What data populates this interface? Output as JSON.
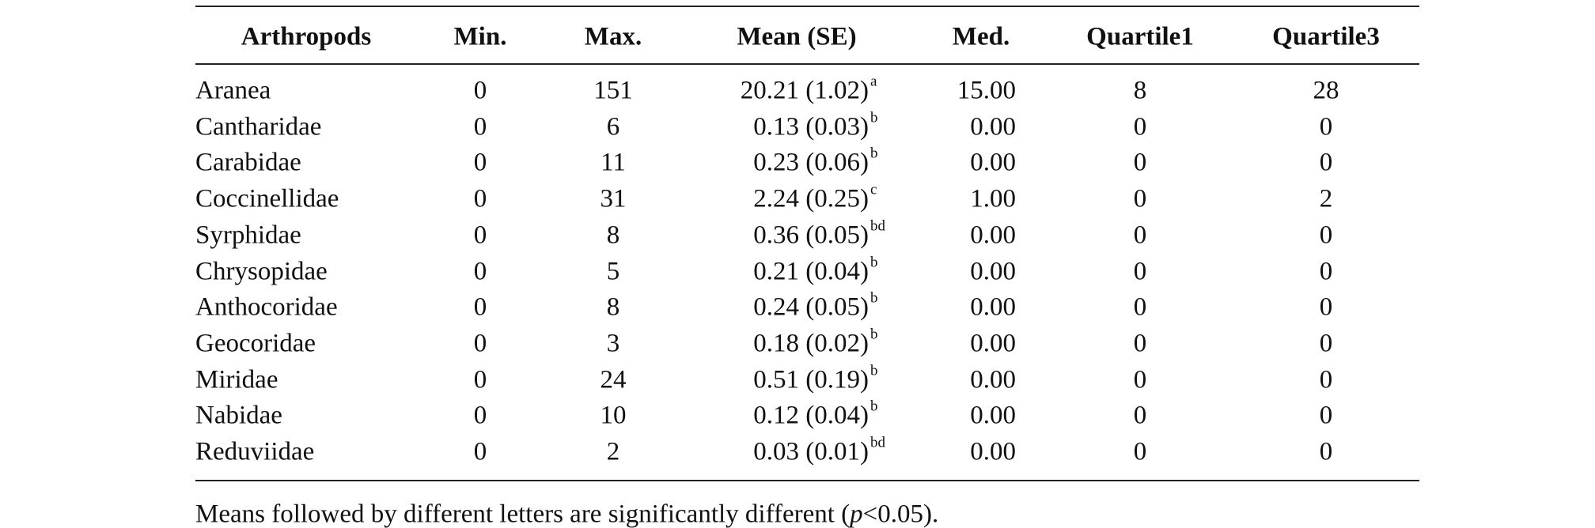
{
  "table": {
    "headers": [
      "Arthropods",
      "Min.",
      "Max.",
      "Mean (SE)",
      "Med.",
      "Quartile1",
      "Quartile3"
    ],
    "rows": [
      [
        "Aranea",
        "0",
        "151",
        "20.21 (1.02)",
        "a",
        "15.00",
        "8",
        "28"
      ],
      [
        "Cantharidae",
        "0",
        "6",
        "0.13 (0.03)",
        "b",
        "0.00",
        "0",
        "0"
      ],
      [
        "Carabidae",
        "0",
        "11",
        "0.23 (0.06)",
        "b",
        "0.00",
        "0",
        "0"
      ],
      [
        "Coccinellidae",
        "0",
        "31",
        "2.24 (0.25)",
        "c",
        "1.00",
        "0",
        "2"
      ],
      [
        "Syrphidae",
        "0",
        "8",
        "0.36 (0.05)",
        "bd",
        "0.00",
        "0",
        "0"
      ],
      [
        "Chrysopidae",
        "0",
        "5",
        "0.21 (0.04)",
        "b",
        "0.00",
        "0",
        "0"
      ],
      [
        "Anthocoridae",
        "0",
        "8",
        "0.24 (0.05)",
        "b",
        "0.00",
        "0",
        "0"
      ],
      [
        "Geocoridae",
        "0",
        "3",
        "0.18 (0.02)",
        "b",
        "0.00",
        "0",
        "0"
      ],
      [
        "Miridae",
        "0",
        "24",
        "0.51 (0.19)",
        "b",
        "0.00",
        "0",
        "0"
      ],
      [
        "Nabidae",
        "0",
        "10",
        "0.12 (0.04)",
        "b",
        "0.00",
        "0",
        "0"
      ],
      [
        "Reduviidae",
        "0",
        "2",
        "0.03 (0.01)",
        "bd",
        "0.00",
        "0",
        "0"
      ]
    ]
  },
  "footnote": [
    "Means followed by different letters are significantly different (",
    "p",
    "<0.05)."
  ]
}
